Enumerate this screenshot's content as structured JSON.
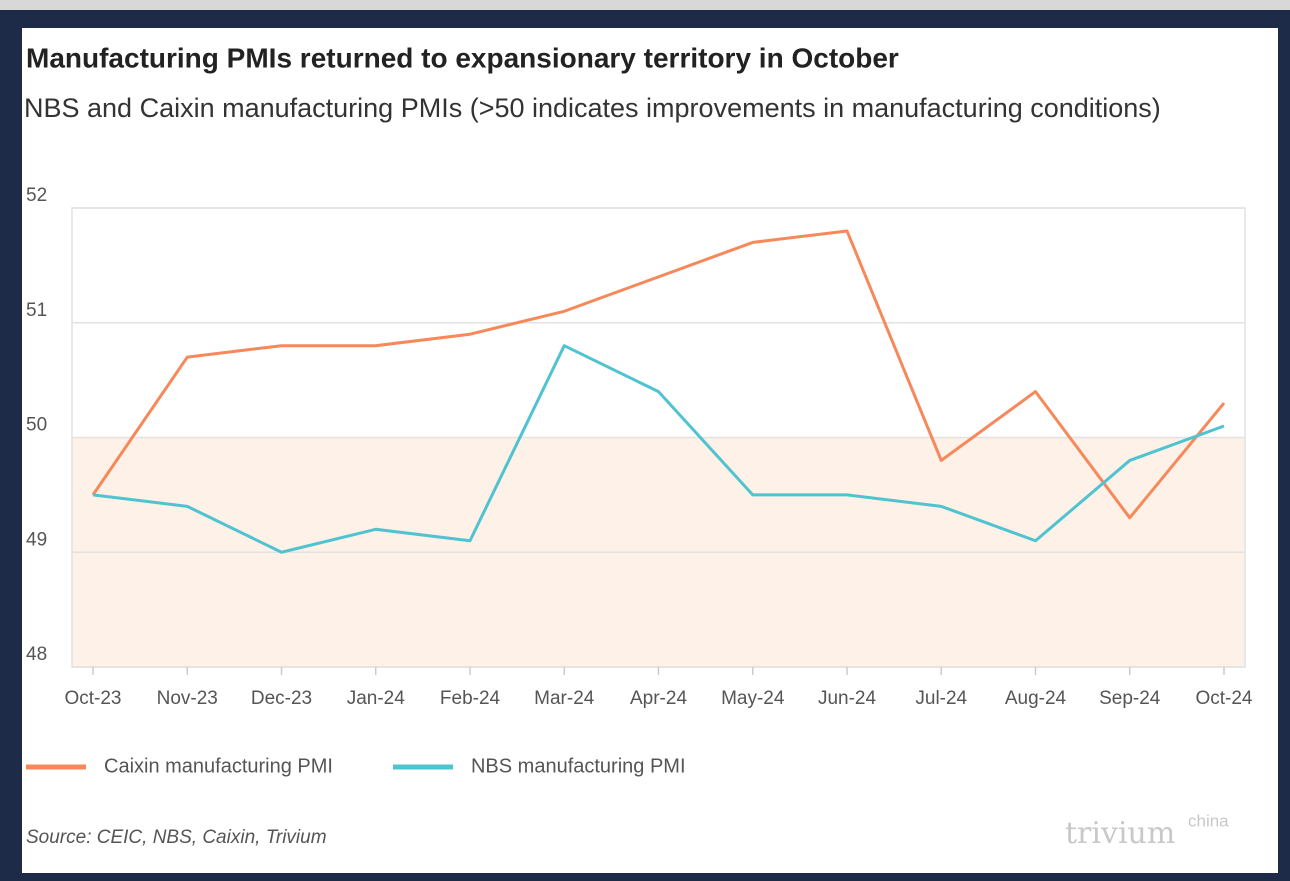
{
  "chart_data": {
    "type": "line",
    "title": "Manufacturing PMIs returned to expansionary territory in October",
    "subtitle": "NBS and Caixin manufacturing PMIs (>50 indicates improvements in manufacturing conditions)",
    "categories": [
      "Oct-23",
      "Nov-23",
      "Dec-23",
      "Jan-24",
      "Feb-24",
      "Mar-24",
      "Apr-24",
      "May-24",
      "Jun-24",
      "Jul-24",
      "Aug-24",
      "Sep-24",
      "Oct-24"
    ],
    "series": [
      {
        "name": "Caixin manufacturing PMI",
        "color": "#f7885a",
        "values": [
          49.5,
          50.7,
          50.8,
          50.8,
          50.9,
          51.1,
          51.4,
          51.7,
          51.8,
          49.8,
          50.4,
          49.3,
          50.3
        ]
      },
      {
        "name": "NBS manufacturing PMI",
        "color": "#4fc3cf",
        "values": [
          49.5,
          49.4,
          49.0,
          49.2,
          49.1,
          50.8,
          50.4,
          49.5,
          49.5,
          49.4,
          49.1,
          49.8,
          50.1
        ]
      }
    ],
    "ylim": [
      48,
      52
    ],
    "yticks": [
      48,
      49,
      50,
      51,
      52
    ],
    "shaded_range": [
      48,
      50
    ],
    "shade_color": "#fdf1e8",
    "grid": true,
    "legend": "bottom",
    "source": "Source: CEIC, NBS, Caixin, Trivium",
    "logo": {
      "text": "trivium",
      "sup": "china"
    }
  }
}
